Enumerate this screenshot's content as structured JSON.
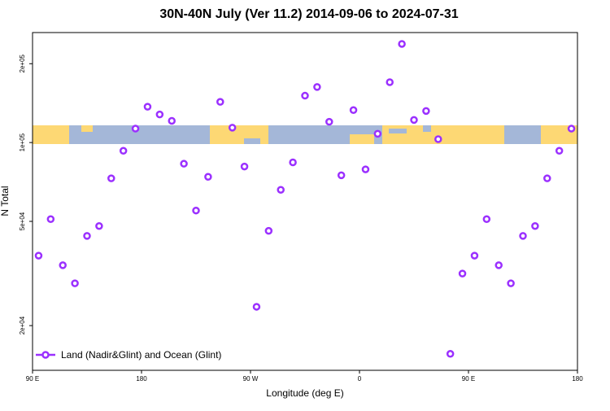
{
  "chart_data": {
    "type": "scatter",
    "title": "30N-40N July (Ver 11.2)   2014-09-06 to 2024-07-31",
    "x_label": "Longitude (deg E)",
    "y_label": "N Total",
    "log_y": true,
    "legend_corner": "bottom-left",
    "xlim": [
      90,
      540
    ],
    "ylim": [
      13500,
      263000
    ],
    "xticks": [
      {
        "value": 90,
        "label": "90 E"
      },
      180,
      {
        "value": 270,
        "label": "90 W"
      },
      {
        "value": 360,
        "label": "0"
      },
      {
        "value": 450,
        "label": "90 E"
      },
      {
        "value": 540,
        "label": "180"
      }
    ],
    "yticks": [
      {
        "value": 20000,
        "label": "2e+04"
      },
      {
        "value": 50000,
        "label": "5e+04"
      },
      {
        "value": 100000,
        "label": "1e+05"
      },
      {
        "value": 200000,
        "label": "2e+05"
      }
    ],
    "series": [
      {
        "name": "Land (Nadir&Glint) and Ocean (Glint)",
        "color": "#9b30ff",
        "x": [
          95,
          105,
          115,
          125,
          135,
          145,
          155,
          165,
          175,
          185,
          195,
          205,
          215,
          225,
          235,
          245,
          255,
          265,
          275,
          285,
          295,
          305,
          315,
          325,
          335,
          345,
          355,
          365,
          375,
          385,
          395,
          405,
          415,
          425,
          435,
          445,
          455,
          465,
          475,
          485,
          495,
          505,
          515,
          525,
          535
        ],
        "values": [
          37000,
          51000,
          34000,
          29000,
          44000,
          48000,
          73000,
          93000,
          113000,
          137000,
          128000,
          121000,
          83000,
          55000,
          74000,
          143000,
          114000,
          81000,
          23600,
          46000,
          66000,
          84000,
          151000,
          163000,
          120000,
          75000,
          133000,
          79000,
          108000,
          170000,
          238000,
          122000,
          132000,
          103000,
          15600,
          31600,
          37000,
          51000,
          34000,
          29000,
          44000,
          48000,
          73000,
          93000,
          113000
        ]
      }
    ]
  }
}
